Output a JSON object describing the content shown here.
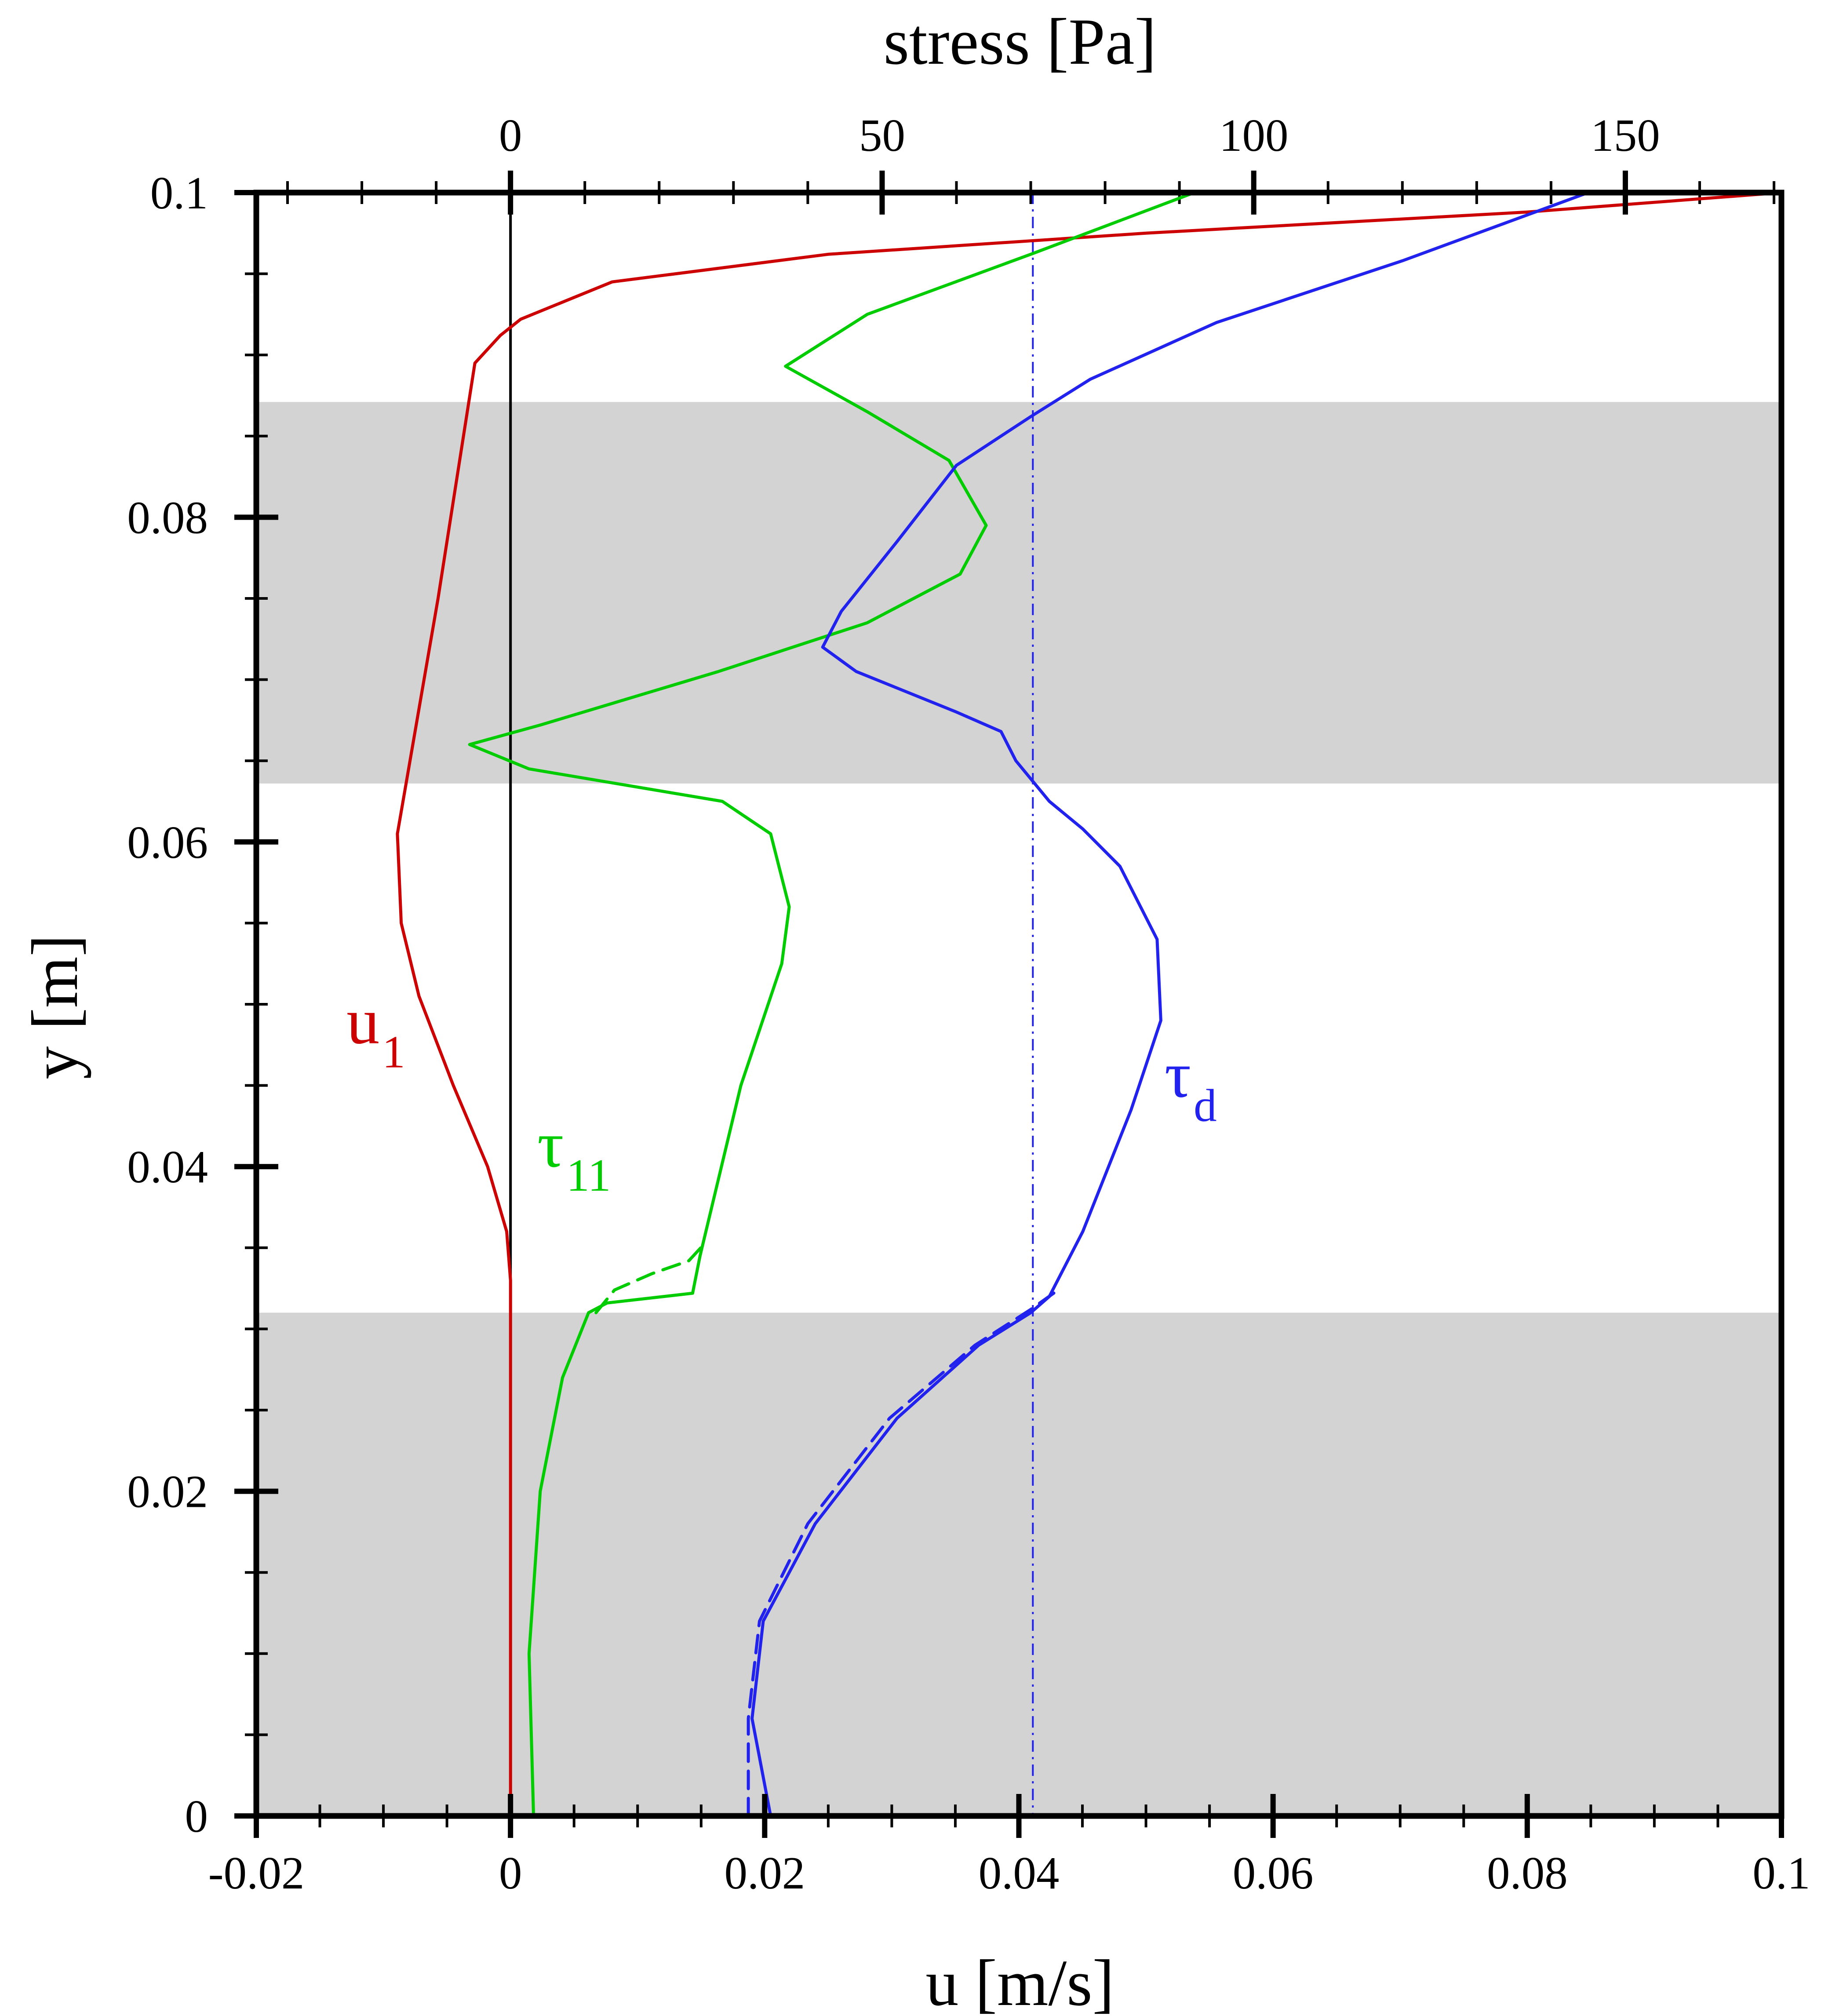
{
  "chart_data": {
    "type": "line",
    "xlabel": "u [m/s]",
    "x2label": "stress [Pa]",
    "ylabel": "y [m]",
    "xlim": [
      -0.02,
      0.1
    ],
    "x2lim": [
      -34.2,
      171.0
    ],
    "ylim": [
      0,
      0.1
    ],
    "x_ticks": [
      "-0.02",
      "0",
      "0.02",
      "0.04",
      "0.06",
      "0.08",
      "0.1"
    ],
    "x_tick_values": [
      -0.02,
      0,
      0.02,
      0.04,
      0.06,
      0.08,
      0.1
    ],
    "x2_ticks": [
      "0",
      "50",
      "100",
      "150"
    ],
    "x2_tick_values": [
      0,
      50,
      100,
      150
    ],
    "y_ticks": [
      "0",
      "0.02",
      "0.04",
      "0.06",
      "0.08",
      "0.1"
    ],
    "y_tick_values": [
      0,
      0.02,
      0.04,
      0.06,
      0.08,
      0.1
    ],
    "shaded_bands_y": [
      [
        0,
        0.031
      ],
      [
        0.0636,
        0.0871
      ]
    ],
    "reference_lines": [
      {
        "axis": "x",
        "value": 0,
        "color": "#000000",
        "style": "solid"
      },
      {
        "axis": "x",
        "value": 0.0411,
        "color": "#2222ee",
        "style": "dashdot"
      }
    ],
    "colors": {
      "u1": "#cc0000",
      "tau11": "#00cc00",
      "taud": "#2222ee",
      "band": "#d3d3d3"
    },
    "series": [
      {
        "name": "u",
        "name_sub": "1",
        "color": "#cc0000",
        "axis": "bottom",
        "style": "solid",
        "label_pos": [
          -0.0129,
          0.0476
        ],
        "points": [
          [
            0,
            0
          ],
          [
            0,
            0.033
          ],
          [
            -0.0003,
            0.036
          ],
          [
            -0.0018,
            0.04
          ],
          [
            -0.0045,
            0.045
          ],
          [
            -0.0072,
            0.0505
          ],
          [
            -0.0086,
            0.055
          ],
          [
            -0.0089,
            0.0605
          ],
          [
            -0.0057,
            0.075
          ],
          [
            -0.0028,
            0.0895
          ],
          [
            -0.0008,
            0.0912
          ],
          [
            0.0008,
            0.0922
          ],
          [
            0.008,
            0.0945
          ],
          [
            0.025,
            0.0962
          ],
          [
            0.05,
            0.0975
          ],
          [
            0.08,
            0.0988
          ],
          [
            0.1,
            0.1
          ]
        ]
      },
      {
        "name": "τ",
        "name_sub": "11",
        "color": "#00cc00",
        "axis": "top",
        "style": "solid",
        "label_pos": [
          3.6,
          0.04
        ],
        "points": [
          [
            3.1,
            0
          ],
          [
            2.5,
            0.01
          ],
          [
            4.0,
            0.02
          ],
          [
            7.0,
            0.027
          ],
          [
            10.5,
            0.031
          ],
          [
            13.0,
            0.0316
          ],
          [
            24.5,
            0.0322
          ],
          [
            25.5,
            0.0345
          ],
          [
            31.0,
            0.045
          ],
          [
            36.5,
            0.0525
          ],
          [
            37.5,
            0.056
          ],
          [
            35.0,
            0.0605
          ],
          [
            28.5,
            0.0625
          ],
          [
            2.5,
            0.0645
          ],
          [
            -5.5,
            0.066
          ],
          [
            4.0,
            0.0672
          ],
          [
            28.0,
            0.0705
          ],
          [
            48.0,
            0.0735
          ],
          [
            60.5,
            0.0765
          ],
          [
            64.0,
            0.0795
          ],
          [
            59.0,
            0.0835
          ],
          [
            48.0,
            0.0865
          ],
          [
            37.0,
            0.0893
          ],
          [
            48.0,
            0.0925
          ],
          [
            70.0,
            0.0962
          ],
          [
            92.0,
            0.1
          ]
        ]
      },
      {
        "name": "τ",
        "name_sub": "d",
        "color": "#2222ee",
        "axis": "top",
        "style": "solid",
        "label_pos": [
          88.0,
          0.0443
        ],
        "points": [
          [
            35.0,
            0
          ],
          [
            32.5,
            0.006
          ],
          [
            34.0,
            0.012
          ],
          [
            41.0,
            0.018
          ],
          [
            52.0,
            0.0245
          ],
          [
            63.0,
            0.029
          ],
          [
            70.0,
            0.031
          ],
          [
            72.5,
            0.032
          ],
          [
            77.0,
            0.036
          ],
          [
            83.5,
            0.0435
          ],
          [
            87.5,
            0.049
          ],
          [
            87.0,
            0.054
          ],
          [
            82.0,
            0.0585
          ],
          [
            77.0,
            0.0608
          ],
          [
            72.5,
            0.0625
          ],
          [
            68.0,
            0.065
          ],
          [
            66.0,
            0.0668
          ],
          [
            60.0,
            0.068
          ],
          [
            46.5,
            0.0705
          ],
          [
            42.0,
            0.072
          ],
          [
            44.5,
            0.0742
          ],
          [
            52.0,
            0.0785
          ],
          [
            60.0,
            0.0832
          ],
          [
            70.0,
            0.0862
          ],
          [
            78.0,
            0.0885
          ],
          [
            95.0,
            0.092
          ],
          [
            120.0,
            0.0958
          ],
          [
            145.0,
            0.1
          ]
        ]
      },
      {
        "name": "",
        "color": "#00cc00",
        "axis": "top",
        "style": "dashed",
        "points": [
          [
            11.5,
            0.031
          ],
          [
            14.0,
            0.0324
          ],
          [
            19.0,
            0.0334
          ],
          [
            24.0,
            0.0342
          ],
          [
            25.8,
            0.0351
          ]
        ]
      },
      {
        "name": "",
        "color": "#2222ee",
        "axis": "top",
        "style": "dashed",
        "points": [
          [
            32.0,
            0.0
          ],
          [
            32.0,
            0.006
          ],
          [
            33.5,
            0.012
          ],
          [
            40.0,
            0.018
          ],
          [
            51.0,
            0.0245
          ],
          [
            62.5,
            0.029
          ],
          [
            70.0,
            0.0312
          ],
          [
            74.0,
            0.0325
          ]
        ]
      }
    ]
  }
}
